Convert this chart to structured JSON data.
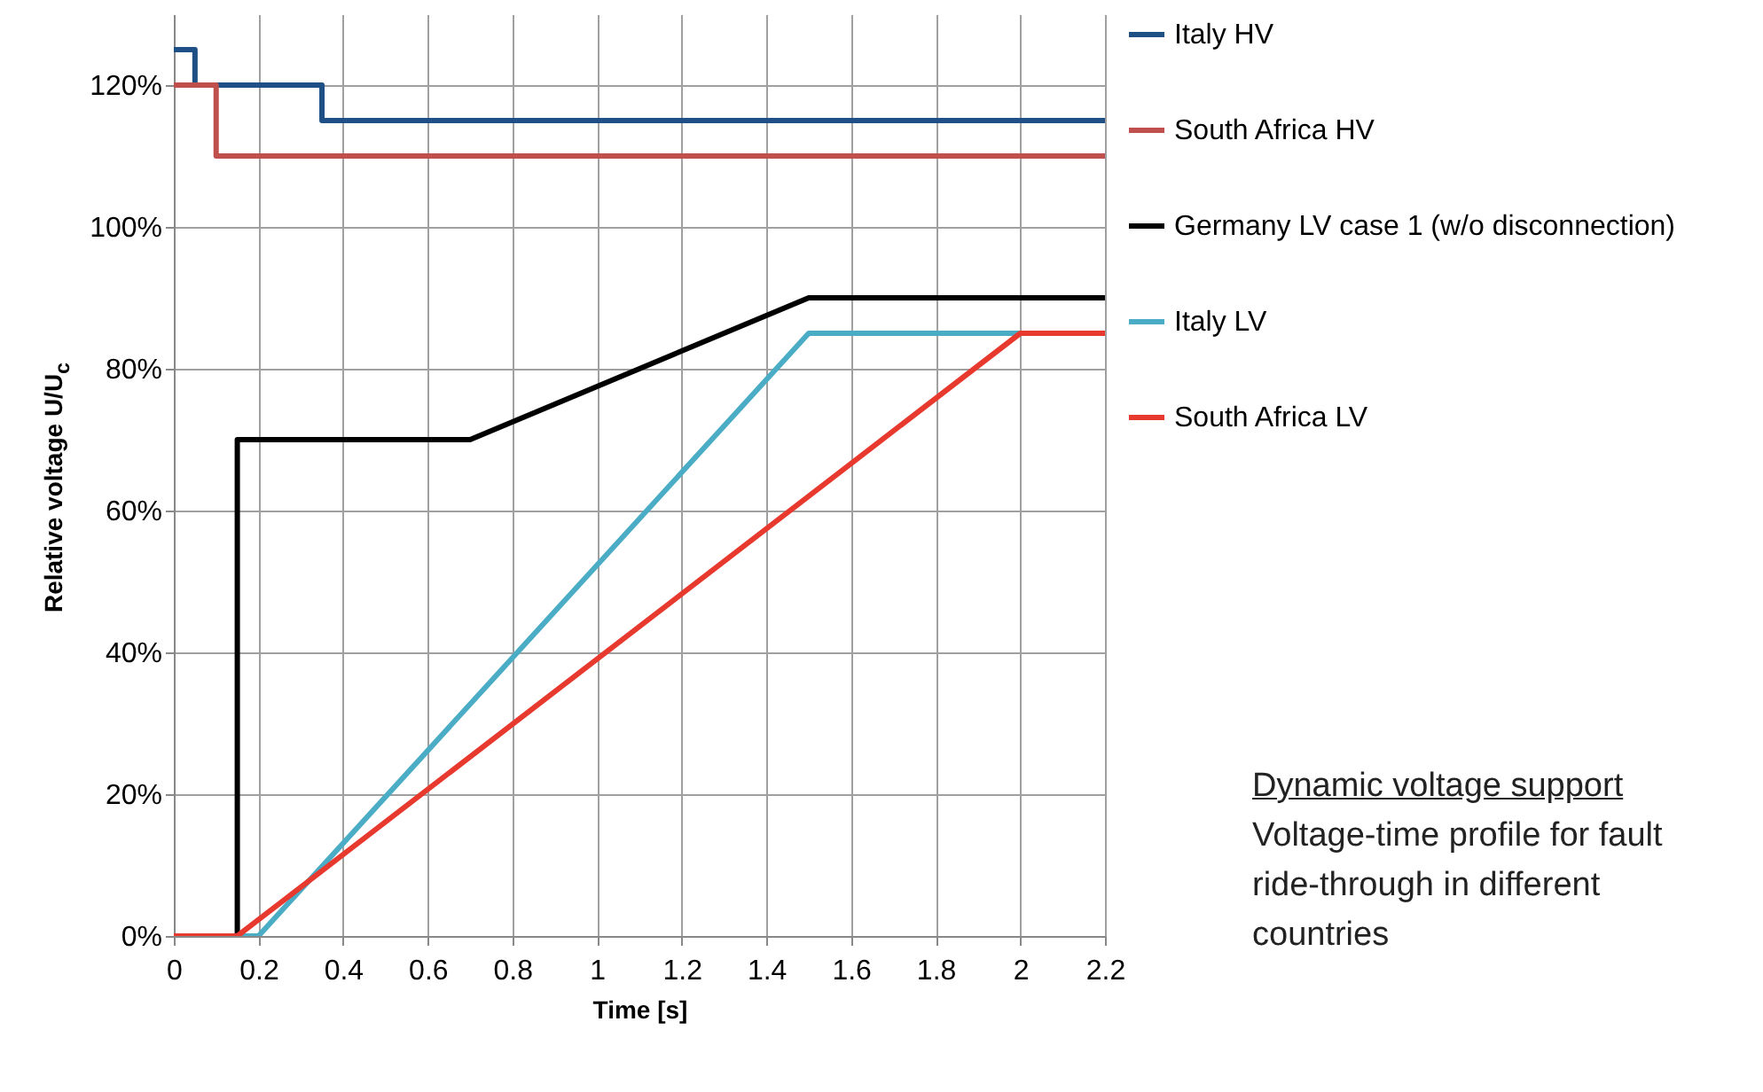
{
  "chart_data": {
    "type": "line",
    "xlabel": "Time [s]",
    "ylabel": "Relative voltage U/U$_{c}$",
    "xlim": [
      0,
      2.2
    ],
    "xticks": [
      0,
      0.2,
      0.4,
      0.6,
      0.8,
      1,
      1.2,
      1.4,
      1.6,
      1.8,
      2,
      2.2
    ],
    "ylim": [
      0,
      130
    ],
    "yticks": [
      {
        "value": 0,
        "label": "0%"
      },
      {
        "value": 20,
        "label": "20%"
      },
      {
        "value": 40,
        "label": "40%"
      },
      {
        "value": 60,
        "label": "60%"
      },
      {
        "value": 80,
        "label": "80%"
      },
      {
        "value": 100,
        "label": "100%"
      },
      {
        "value": 120,
        "label": "120%"
      }
    ],
    "grid": true,
    "legend": "right",
    "line_style": "solid",
    "marker": "none",
    "annotations": [
      "Dynamic voltage support",
      "Voltage-time profile for fault ride-through in different countries"
    ],
    "series": [
      {
        "name": "Italy HV",
        "color": "#1f5085",
        "x": [
          0,
          0.05,
          0.05,
          0.35,
          0.35,
          2.2
        ],
        "values": [
          125,
          125,
          120,
          120,
          115,
          115
        ]
      },
      {
        "name": "South Africa HV",
        "color": "#c0504d",
        "x": [
          0,
          0.1,
          0.1,
          2.2
        ],
        "values": [
          120,
          120,
          110,
          110
        ]
      },
      {
        "name": "Germany LV case 1 (w/o disconnection)",
        "color": "#000000",
        "x": [
          0,
          0.15,
          0.15,
          0.7,
          1.5,
          2.2
        ],
        "values": [
          0,
          0,
          70,
          70,
          90,
          90
        ]
      },
      {
        "name": "Italy LV",
        "color": "#4bacc6",
        "x": [
          0,
          0.2,
          1.5,
          2.2
        ],
        "values": [
          0,
          0,
          85,
          85
        ]
      },
      {
        "name": "South Africa LV",
        "color": "#e8392f",
        "x": [
          0,
          0.15,
          2.0,
          2.2
        ],
        "values": [
          0,
          0,
          85,
          85
        ]
      }
    ]
  }
}
